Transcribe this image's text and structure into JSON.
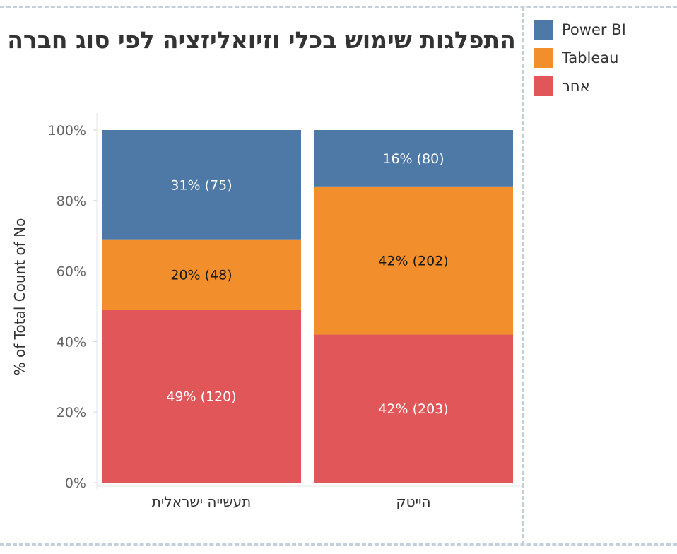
{
  "chart_data": {
    "type": "bar",
    "stacked": true,
    "normalized": true,
    "title": "התפלגות שימוש בכלי וזיואליזציה לפי סוג חברה",
    "ylabel": "% of Total Count of No",
    "xlabel": "",
    "ylim": [
      0,
      100
    ],
    "y_ticks": [
      "0%",
      "20%",
      "40%",
      "60%",
      "80%",
      "100%"
    ],
    "categories": [
      "תעשייה ישראלית",
      "הייטק"
    ],
    "legend_position": "top-right",
    "series": [
      {
        "name": "אחר",
        "color": "#E15759",
        "percent": [
          49,
          42
        ],
        "counts": [
          120,
          203
        ],
        "labels": [
          "49% (120)",
          "42% (203)"
        ]
      },
      {
        "name": "Tableau",
        "color": "#F28E2B",
        "percent": [
          20,
          42
        ],
        "counts": [
          48,
          202
        ],
        "labels": [
          "20% (48)",
          "42% (202)"
        ]
      },
      {
        "name": "Power BI",
        "color": "#4E79A7",
        "percent": [
          31,
          16
        ],
        "counts": [
          75,
          80
        ],
        "labels": [
          "31% (75)",
          "16% (80)"
        ]
      }
    ],
    "legend_order": [
      "Power BI",
      "Tableau",
      "אחר"
    ]
  }
}
